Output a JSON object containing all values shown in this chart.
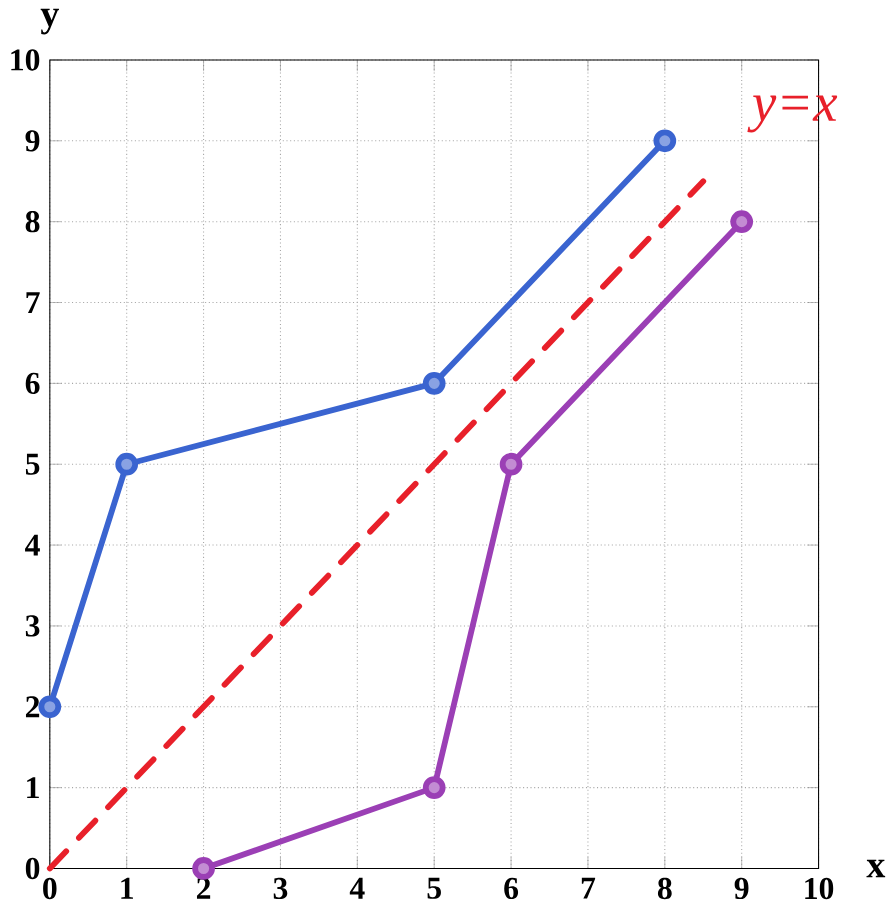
{
  "chart_data": {
    "type": "line",
    "xlabel": "x",
    "ylabel": "y",
    "xlim": [
      0,
      10
    ],
    "ylim": [
      0,
      10
    ],
    "xticks": [
      0,
      1,
      2,
      3,
      4,
      5,
      6,
      7,
      8,
      9,
      10
    ],
    "yticks": [
      0,
      1,
      2,
      3,
      4,
      5,
      6,
      7,
      8,
      9,
      10
    ],
    "grid": true,
    "series": [
      {
        "color": "#3a64d0",
        "x": [
          0,
          1,
          5,
          8
        ],
        "values": [
          2,
          5,
          6,
          9
        ],
        "marker": "circle",
        "line_style": "solid"
      },
      {
        "color": "#9b3fb5",
        "x": [
          2,
          5,
          6,
          9
        ],
        "values": [
          0,
          1,
          5,
          8
        ],
        "marker": "circle",
        "line_style": "solid"
      },
      {
        "name": "y=x",
        "color": "#e8202a",
        "x": [
          0,
          8.5
        ],
        "values": [
          0,
          8.5
        ],
        "marker": "none",
        "line_style": "dashed"
      }
    ]
  }
}
